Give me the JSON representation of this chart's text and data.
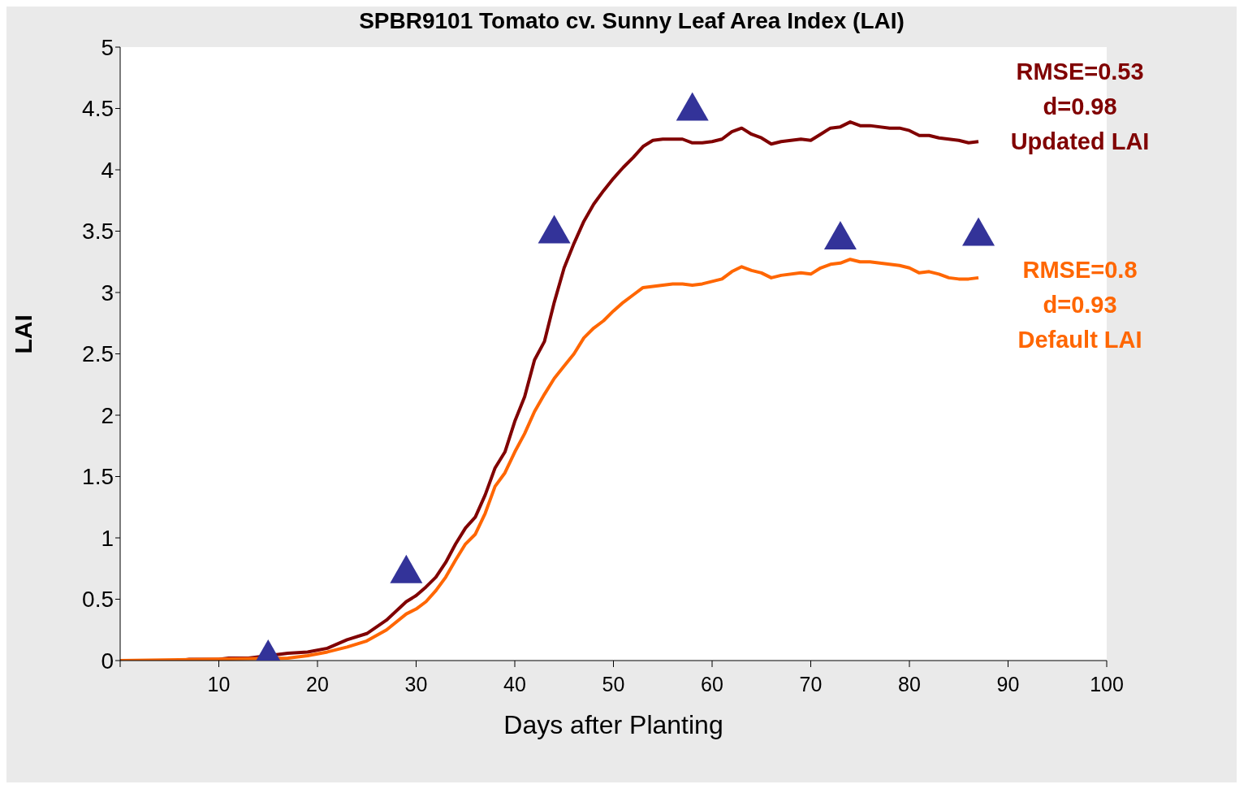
{
  "chart_data": {
    "type": "line",
    "title": "SPBR9101 Tomato cv. Sunny Leaf Area Index (LAI)",
    "xlabel": "Days after Planting",
    "ylabel": "LAI",
    "xlim": [
      0,
      100
    ],
    "xticks": [
      {
        "value": 0,
        "label": null
      },
      10,
      20,
      30,
      40,
      50,
      60,
      70,
      80,
      90,
      100
    ],
    "ylim": [
      0,
      5
    ],
    "yticks": [
      0,
      0.5,
      1,
      1.5,
      2,
      2.5,
      3,
      3.5,
      4,
      4.5,
      5
    ],
    "marker": "none",
    "line_style": "solid",
    "annotations": [
      "RMSE=0.53",
      "d=0.98",
      "RMSE=0.8",
      "d=0.93"
    ],
    "series": [
      {
        "name": "Updated LAI",
        "color": "#800000",
        "x": [
          0,
          6,
          7,
          10,
          11,
          13,
          14,
          17,
          19,
          21,
          23,
          25,
          27,
          29,
          30,
          31,
          32,
          33,
          34,
          35,
          36,
          37,
          38,
          39,
          40,
          41,
          42,
          43,
          44,
          45,
          46,
          47,
          48,
          49,
          50,
          51,
          52,
          53,
          54,
          55,
          57,
          58,
          59,
          60,
          61,
          62,
          63,
          64,
          65,
          66,
          67,
          69,
          70,
          71,
          72,
          73,
          74,
          75,
          76,
          78,
          79,
          80,
          81,
          82,
          83,
          85,
          86,
          87
        ],
        "values": [
          0,
          0,
          0.01,
          0.01,
          0.02,
          0.02,
          0.03,
          0.06,
          0.07,
          0.1,
          0.17,
          0.22,
          0.33,
          0.48,
          0.53,
          0.6,
          0.68,
          0.8,
          0.95,
          1.08,
          1.17,
          1.35,
          1.57,
          1.7,
          1.95,
          2.15,
          2.45,
          2.6,
          2.92,
          3.2,
          3.4,
          3.58,
          3.72,
          3.83,
          3.93,
          4.02,
          4.1,
          4.19,
          4.24,
          4.25,
          4.25,
          4.22,
          4.22,
          4.23,
          4.25,
          4.31,
          4.34,
          4.29,
          4.26,
          4.21,
          4.23,
          4.25,
          4.24,
          4.29,
          4.34,
          4.35,
          4.39,
          4.36,
          4.36,
          4.34,
          4.34,
          4.32,
          4.28,
          4.28,
          4.26,
          4.24,
          4.22,
          4.23
        ]
      },
      {
        "name": "Default LAI",
        "color": "#ff6600",
        "x": [
          0,
          17,
          19,
          21,
          23,
          25,
          27,
          29,
          30,
          31,
          32,
          33,
          34,
          35,
          36,
          37,
          38,
          39,
          40,
          41,
          42,
          43,
          44,
          45,
          46,
          47,
          48,
          49,
          50,
          51,
          52,
          53,
          54,
          55,
          56,
          57,
          58,
          59,
          60,
          61,
          62,
          63,
          64,
          65,
          66,
          67,
          69,
          70,
          71,
          72,
          73,
          74,
          75,
          76,
          78,
          79,
          80,
          81,
          82,
          83,
          84,
          85,
          86,
          87
        ],
        "values": [
          0,
          0.02,
          0.04,
          0.07,
          0.11,
          0.16,
          0.25,
          0.38,
          0.42,
          0.48,
          0.57,
          0.68,
          0.82,
          0.95,
          1.03,
          1.2,
          1.42,
          1.53,
          1.7,
          1.85,
          2.03,
          2.17,
          2.3,
          2.4,
          2.5,
          2.63,
          2.71,
          2.77,
          2.85,
          2.92,
          2.98,
          3.04,
          3.05,
          3.06,
          3.07,
          3.07,
          3.06,
          3.07,
          3.09,
          3.11,
          3.17,
          3.21,
          3.18,
          3.16,
          3.12,
          3.14,
          3.16,
          3.15,
          3.2,
          3.23,
          3.24,
          3.27,
          3.25,
          3.25,
          3.23,
          3.22,
          3.2,
          3.16,
          3.17,
          3.15,
          3.12,
          3.11,
          3.11,
          3.12
        ]
      },
      {
        "type": "scatter",
        "marker": "triangle",
        "color": "#333399",
        "x": [
          15,
          29,
          44,
          58,
          73,
          87
        ],
        "values": [
          0.04,
          0.73,
          3.5,
          4.5,
          3.45,
          3.48
        ]
      }
    ]
  }
}
